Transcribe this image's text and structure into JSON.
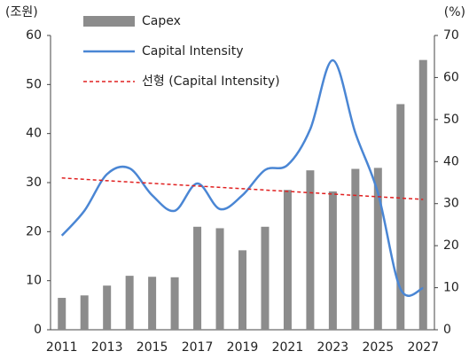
{
  "chart_data": {
    "type": "bar_line",
    "y_label": "(조원)",
    "y2_label": "(%)",
    "categories": [
      "2011",
      null,
      "2013",
      null,
      "2015",
      null,
      "2017",
      null,
      "2019",
      null,
      "2021",
      null,
      "2023",
      null,
      "2025",
      null,
      "2027"
    ],
    "series": [
      {
        "name": "Capex",
        "type": "bar",
        "color": "#8c8c8c",
        "values": [
          6.5,
          7,
          9,
          11,
          10.8,
          10.7,
          21,
          20.7,
          16.2,
          21,
          28.5,
          32.5,
          28.2,
          32.8,
          33,
          46,
          55
        ]
      },
      {
        "name": "Capital Intensity",
        "type": "line",
        "axis": "y2",
        "color": "#4a86d4",
        "values": [
          22.4,
          28.3,
          37,
          38.4,
          32,
          28.3,
          34.8,
          28.7,
          32,
          38,
          39.2,
          47.7,
          64.1,
          46.8,
          32.5,
          9.7,
          9.9
        ]
      },
      {
        "name": "선형 (Capital Intensity)",
        "type": "dashed_line",
        "axis": "y2",
        "color": "#e02020",
        "values": [
          36.1,
          35.78,
          35.46,
          35.14,
          34.83,
          34.51,
          34.19,
          33.87,
          33.55,
          33.23,
          32.91,
          32.59,
          32.28,
          31.96,
          31.64,
          31.32,
          31.0
        ]
      }
    ],
    "ylim": [
      0,
      60
    ],
    "yticks": [
      0,
      10,
      20,
      30,
      40,
      50,
      60
    ],
    "y2lim": [
      0,
      70
    ],
    "y2ticks": [
      0,
      10,
      20,
      30,
      40,
      50,
      60,
      70
    ],
    "legend": "top-left",
    "grid": false
  }
}
